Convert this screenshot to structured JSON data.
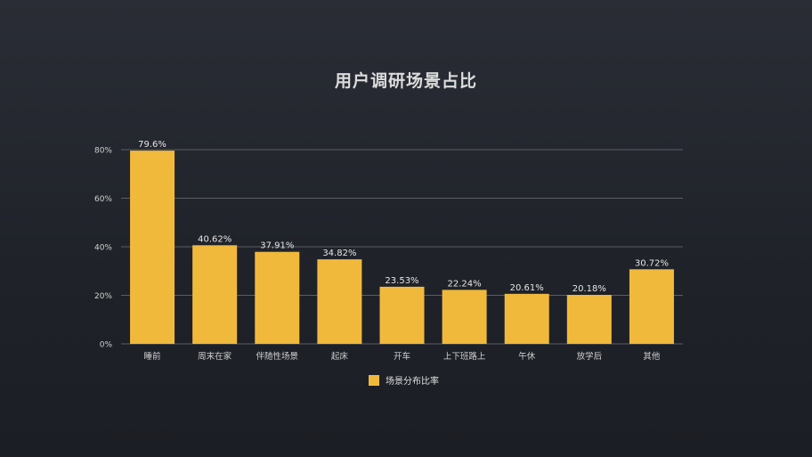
{
  "chart_data": {
    "type": "bar",
    "title": "用户调研场景占比",
    "categories": [
      "睡前",
      "周末在家",
      "伴随性场景",
      "起床",
      "开车",
      "上下班路上",
      "午休",
      "放学后",
      "其他"
    ],
    "series": [
      {
        "name": "场景分布比率",
        "values": [
          79.6,
          40.62,
          37.91,
          34.82,
          23.53,
          22.24,
          20.61,
          20.18,
          30.72
        ],
        "labels": [
          "79.6%",
          "40.62%",
          "37.91%",
          "34.82%",
          "23.53%",
          "22.24%",
          "20.61%",
          "20.18%",
          "30.72%"
        ]
      }
    ],
    "yticks": [
      0,
      20,
      40,
      60,
      80
    ],
    "ytick_labels": [
      "0%",
      "20%",
      "40%",
      "60%",
      "80%"
    ],
    "ylim": [
      0,
      80
    ],
    "xlabel": "",
    "ylabel": "",
    "grid": true,
    "legend_position": "bottom-center",
    "colors": {
      "bar": "#f1b93c",
      "grid": "#5a5d64",
      "axis_text": "#d0d0d0",
      "label_text": "#e6e6e6"
    }
  }
}
